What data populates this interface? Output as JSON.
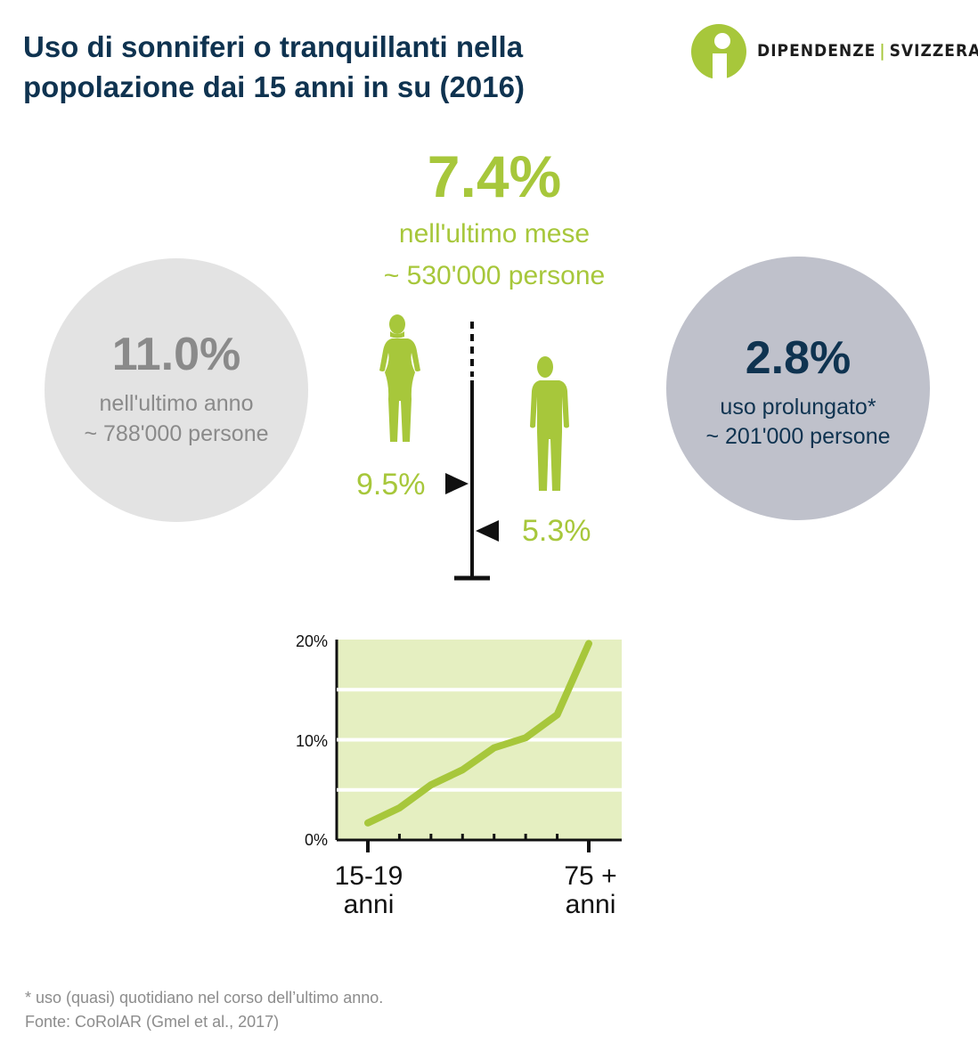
{
  "title": "Uso di sonniferi o tranquillanti nella popolazione dai 15 anni in su (2016)",
  "logo": {
    "left": "DIPENDENZE",
    "right": "SVIZZERA",
    "color": "#a7c73b"
  },
  "month": {
    "value": "7.4%",
    "label": "nell'ultimo mese",
    "people": "~ 530'000 persone"
  },
  "year": {
    "value": "11.0%",
    "label": "nell'ultimo anno",
    "people": "~ 788'000 persone"
  },
  "prolonged": {
    "value": "2.8%",
    "label": "uso prolungato*",
    "people": "~ 201'000 persone"
  },
  "gender": {
    "women": {
      "value": "9.5%",
      "icon": "woman-silhouette-icon"
    },
    "men": {
      "value": "5.3%",
      "icon": "man-silhouette-icon"
    }
  },
  "chart_data": {
    "type": "line",
    "x_first_label": "15-19",
    "x_first_unit": "anni",
    "x_last_label": "75 +",
    "x_last_unit": "anni",
    "y_ticks": [
      "20%",
      "10%",
      "0%"
    ],
    "ylim": [
      0,
      20
    ],
    "y_gridlines": [
      5,
      10,
      15
    ],
    "grid": true,
    "values": [
      1.7,
      3.2,
      5.5,
      7.0,
      9.2,
      10.2,
      12.5,
      19.6
    ],
    "colors": {
      "line": "#a7c73b",
      "fill": "#e5efc1"
    }
  },
  "footnote": "* uso (quasi) quotidiano nel corso dell’ultimo anno.",
  "source": "Fonte: CoRolAR (Gmel et al., 2017)"
}
